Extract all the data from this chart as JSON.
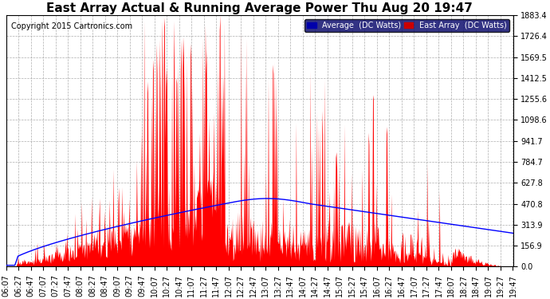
{
  "title": "East Array Actual & Running Average Power Thu Aug 20 19:47",
  "copyright": "Copyright 2015 Cartronics.com",
  "ylabel_right_values": [
    0.0,
    156.9,
    313.9,
    470.8,
    627.8,
    784.7,
    941.7,
    1098.6,
    1255.6,
    1412.5,
    1569.5,
    1726.4,
    1883.4
  ],
  "ymax": 1883.4,
  "ymin": 0.0,
  "legend_blue_label": "Average  (DC Watts)",
  "legend_red_label": "East Array  (DC Watts)",
  "legend_blue_bg": "#0000aa",
  "legend_red_bg": "#cc0000",
  "bg_color": "#ffffff",
  "grid_color": "#999999",
  "title_fontsize": 11,
  "tick_fontsize": 7,
  "copyright_fontsize": 7
}
